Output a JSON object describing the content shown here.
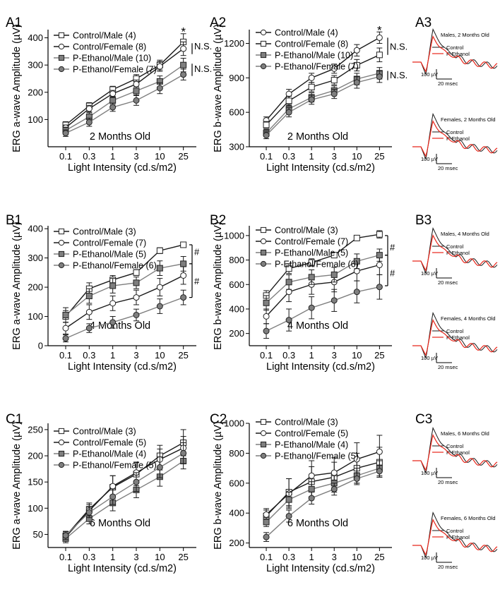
{
  "figure": {
    "x_tick_labels": [
      "0.1",
      "0.3",
      "1",
      "3",
      "10",
      "25"
    ]
  },
  "colors": {
    "control": "#1a1a1a",
    "p_ethanol": "#e8261a",
    "filled_marker": "#7f7f7f",
    "error_bar": "#999999"
  },
  "chart_data": [
    {
      "id": "A1",
      "panel_label": "A1",
      "type": "line",
      "x": [
        0.1,
        0.3,
        1,
        3,
        10,
        25
      ],
      "xlabel": "Light Intensity (cd.s/m2)",
      "ylabel": "ERG a-wave Amplitude (µV)",
      "ylim": [
        0,
        430
      ],
      "yticks": [
        100,
        200,
        300,
        400
      ],
      "age_label": "2 Months Old",
      "series": [
        {
          "name": "Control/Male (4)",
          "marker": "open-square",
          "values": [
            80,
            150,
            210,
            250,
            300,
            385
          ],
          "err": [
            12,
            12,
            12,
            15,
            18,
            30
          ]
        },
        {
          "name": "Control/Female (8)",
          "marker": "open-circle",
          "values": [
            70,
            140,
            195,
            230,
            295,
            360
          ],
          "err": [
            10,
            12,
            12,
            15,
            18,
            25
          ]
        },
        {
          "name": "P-Ethanol/Male (10)",
          "marker": "filled-square",
          "values": [
            60,
            110,
            170,
            205,
            240,
            300
          ],
          "err": [
            12,
            15,
            15,
            15,
            20,
            25
          ]
        },
        {
          "name": "P-Ethanol/Female (7)",
          "marker": "filled-circle",
          "values": [
            50,
            90,
            145,
            170,
            215,
            265
          ],
          "err": [
            12,
            15,
            15,
            18,
            20,
            20
          ]
        }
      ],
      "annotations": [
        {
          "text": "*",
          "x": 25,
          "y": 418
        },
        {
          "text": "N.S.",
          "x": 25,
          "y": 368
        },
        {
          "text": "N.S.",
          "x": 25,
          "y": 285
        }
      ],
      "brackets": [
        [
          340,
          380
        ],
        [
          260,
          305
        ]
      ]
    },
    {
      "id": "A2",
      "panel_label": "A2",
      "type": "line",
      "x": [
        0.1,
        0.3,
        1,
        3,
        10,
        25
      ],
      "xlabel": "Light Intensity (cd.s/m2)",
      "ylabel": "ERG b-wave Amplitude (µV)",
      "ylim": [
        300,
        1320
      ],
      "yticks": [
        300,
        600,
        900,
        1200
      ],
      "age_label": "2 Months Old",
      "series": [
        {
          "name": "Control/Male (4)",
          "marker": "open-circle",
          "values": [
            530,
            760,
            900,
            980,
            1140,
            1250
          ],
          "err": [
            30,
            40,
            40,
            40,
            50,
            50
          ]
        },
        {
          "name": "Control/Female (8)",
          "marker": "open-square",
          "values": [
            490,
            700,
            820,
            880,
            1010,
            1100
          ],
          "err": [
            30,
            40,
            40,
            40,
            50,
            60
          ]
        },
        {
          "name": "P-Ethanol/Male (10)",
          "marker": "filled-square",
          "values": [
            420,
            630,
            730,
            790,
            890,
            940
          ],
          "err": [
            30,
            40,
            40,
            40,
            50,
            50
          ]
        },
        {
          "name": "P-Ethanol/Female (7)",
          "marker": "filled-circle",
          "values": [
            400,
            600,
            710,
            760,
            860,
            910
          ],
          "err": [
            30,
            40,
            40,
            40,
            50,
            50
          ]
        }
      ],
      "annotations": [
        {
          "text": "*",
          "x": 25,
          "y": 1305
        },
        {
          "text": "N.S.",
          "x": 25,
          "y": 1170
        },
        {
          "text": "N.S.",
          "x": 25,
          "y": 920
        }
      ],
      "brackets": [
        [
          1100,
          1250
        ],
        [
          880,
          960
        ]
      ]
    },
    {
      "id": "B1",
      "panel_label": "B1",
      "type": "line",
      "x": [
        0.1,
        0.3,
        1,
        3,
        10,
        25
      ],
      "xlabel": "Light Intensity (cd.s/m2)",
      "ylabel": "ERG a-wave Amplitude (µV)",
      "ylim": [
        0,
        410
      ],
      "yticks": [
        0,
        100,
        200,
        300,
        400
      ],
      "age_label": "4 Months Old",
      "series": [
        {
          "name": "Control/Male (3)",
          "marker": "open-square",
          "values": [
            100,
            195,
            225,
            250,
            325,
            345
          ],
          "err": [
            20,
            20,
            15,
            10,
            10,
            5
          ]
        },
        {
          "name": "Control/Female (7)",
          "marker": "open-circle",
          "values": [
            60,
            115,
            145,
            165,
            200,
            240
          ],
          "err": [
            20,
            25,
            25,
            25,
            30,
            30
          ]
        },
        {
          "name": "P-Ethanol/Male (5)",
          "marker": "filled-square",
          "values": [
            105,
            170,
            205,
            215,
            265,
            280
          ],
          "err": [
            25,
            25,
            25,
            20,
            25,
            25
          ]
        },
        {
          "name": "P-Ethanol/Female (6)",
          "marker": "filled-circle",
          "values": [
            25,
            60,
            80,
            105,
            135,
            165
          ],
          "err": [
            12,
            15,
            20,
            20,
            25,
            25
          ]
        }
      ],
      "annotations": [
        {
          "text": "#",
          "x": 25,
          "y": 320
        },
        {
          "text": "#",
          "x": 25,
          "y": 220
        }
      ],
      "brackets": [
        [
          280,
          345
        ],
        [
          165,
          280
        ]
      ]
    },
    {
      "id": "B2",
      "panel_label": "B2",
      "type": "line",
      "x": [
        0.1,
        0.3,
        1,
        3,
        10,
        25
      ],
      "xlabel": "Light Intensity (cd.s/m2)",
      "ylabel": "ERG b-wave Amplitude (µV)",
      "ylim": [
        100,
        1080
      ],
      "yticks": [
        200,
        400,
        600,
        800,
        1000
      ],
      "age_label": "4 Months Old",
      "series": [
        {
          "name": "Control/Male (3)",
          "marker": "open-square",
          "values": [
            510,
            730,
            780,
            840,
            980,
            1010
          ],
          "err": [
            40,
            40,
            30,
            20,
            10,
            30
          ]
        },
        {
          "name": "Control/Female (7)",
          "marker": "open-circle",
          "values": [
            340,
            540,
            600,
            620,
            710,
            760
          ],
          "err": [
            60,
            80,
            80,
            80,
            80,
            80
          ]
        },
        {
          "name": "P-Ethanol/Male (5)",
          "marker": "filled-square",
          "values": [
            450,
            620,
            660,
            680,
            790,
            840
          ],
          "err": [
            60,
            60,
            60,
            60,
            60,
            50
          ]
        },
        {
          "name": "P-Ethanol/Female (6)",
          "marker": "filled-circle",
          "values": [
            220,
            310,
            410,
            470,
            540,
            580
          ],
          "err": [
            60,
            90,
            90,
            90,
            90,
            100
          ]
        }
      ],
      "annotations": [
        {
          "text": "#",
          "x": 25,
          "y": 900
        },
        {
          "text": "#",
          "x": 25,
          "y": 690
        }
      ],
      "brackets": [
        [
          840,
          1000
        ],
        [
          590,
          840
        ]
      ]
    },
    {
      "id": "C1",
      "panel_label": "C1",
      "type": "line",
      "x": [
        0.1,
        0.3,
        1,
        3,
        10,
        25
      ],
      "xlabel": "Light Intensity (cd.s/m2)",
      "ylabel": "ERG a-wave Amplitude (µV)",
      "ylim": [
        25,
        262
      ],
      "yticks": [
        50,
        100,
        150,
        200,
        250
      ],
      "age_label": "6 Months Old",
      "series": [
        {
          "name": "Control/Male (3)",
          "marker": "open-square",
          "values": [
            47,
            98,
            140,
            165,
            200,
            225
          ],
          "err": [
            8,
            12,
            22,
            22,
            20,
            25
          ]
        },
        {
          "name": "Control/Female (5)",
          "marker": "open-circle",
          "values": [
            45,
            95,
            142,
            168,
            193,
            215
          ],
          "err": [
            8,
            12,
            20,
            20,
            20,
            22
          ]
        },
        {
          "name": "P-Ethanol/Male (4)",
          "marker": "filled-square",
          "values": [
            42,
            80,
            110,
            135,
            160,
            190
          ],
          "err": [
            8,
            10,
            15,
            15,
            18,
            15
          ]
        },
        {
          "name": "P-Ethanol/Female (5)",
          "marker": "filled-circle",
          "values": [
            48,
            92,
            122,
            150,
            178,
            205
          ],
          "err": [
            8,
            10,
            15,
            18,
            20,
            20
          ]
        }
      ],
      "annotations": [],
      "brackets": []
    },
    {
      "id": "C2",
      "panel_label": "C2",
      "type": "line",
      "x": [
        0.1,
        0.3,
        1,
        3,
        10,
        25
      ],
      "xlabel": "Light Intensity (cd.s/m2)",
      "ylabel": "ERG b-wave Amplitude (µV)",
      "ylim": [
        170,
        1000
      ],
      "yticks": [
        200,
        400,
        600,
        800,
        1000
      ],
      "age_label": "6 Months Old",
      "series": [
        {
          "name": "Control/Male (3)",
          "marker": "open-square",
          "values": [
            380,
            540,
            610,
            640,
            700,
            740
          ],
          "err": [
            40,
            90,
            100,
            100,
            100,
            100
          ]
        },
        {
          "name": "Control/Female (5)",
          "marker": "open-circle",
          "values": [
            390,
            530,
            650,
            670,
            760,
            810
          ],
          "err": [
            40,
            100,
            100,
            100,
            110,
            110
          ]
        },
        {
          "name": "P-Ethanol/Male (4)",
          "marker": "filled-square",
          "values": [
            340,
            490,
            560,
            600,
            650,
            700
          ],
          "err": [
            30,
            50,
            50,
            50,
            50,
            50
          ]
        },
        {
          "name": "P-Ethanol/Female (5)",
          "marker": "filled-circle",
          "values": [
            240,
            380,
            500,
            560,
            630,
            680
          ],
          "err": [
            30,
            40,
            40,
            40,
            40,
            40
          ]
        }
      ],
      "annotations": [],
      "brackets": []
    }
  ],
  "traces": [
    {
      "id": "A3",
      "panel_label": "A3",
      "title_top": "Males, 2 Months Old",
      "title_bottom": "Females, 2 Months Old",
      "legend": [
        "Control",
        "P-Ethanol"
      ],
      "scale_uv": "100 µV",
      "scale_ms": "20 msec"
    },
    {
      "id": "B3",
      "panel_label": "B3",
      "title_top": "Males, 4 Months Old",
      "title_bottom": "Females, 4 Months Old",
      "legend": [
        "Control",
        "P-Ethanol"
      ],
      "scale_uv": "100 µV",
      "scale_ms": "20 msec"
    },
    {
      "id": "C3",
      "panel_label": "C3",
      "title_top": "Males, 6 Months Old",
      "title_bottom": "Females, 6 Months Old",
      "legend": [
        "Control",
        "P-Ethanol"
      ],
      "scale_uv": "100 µV",
      "scale_ms": "20 msec"
    }
  ]
}
